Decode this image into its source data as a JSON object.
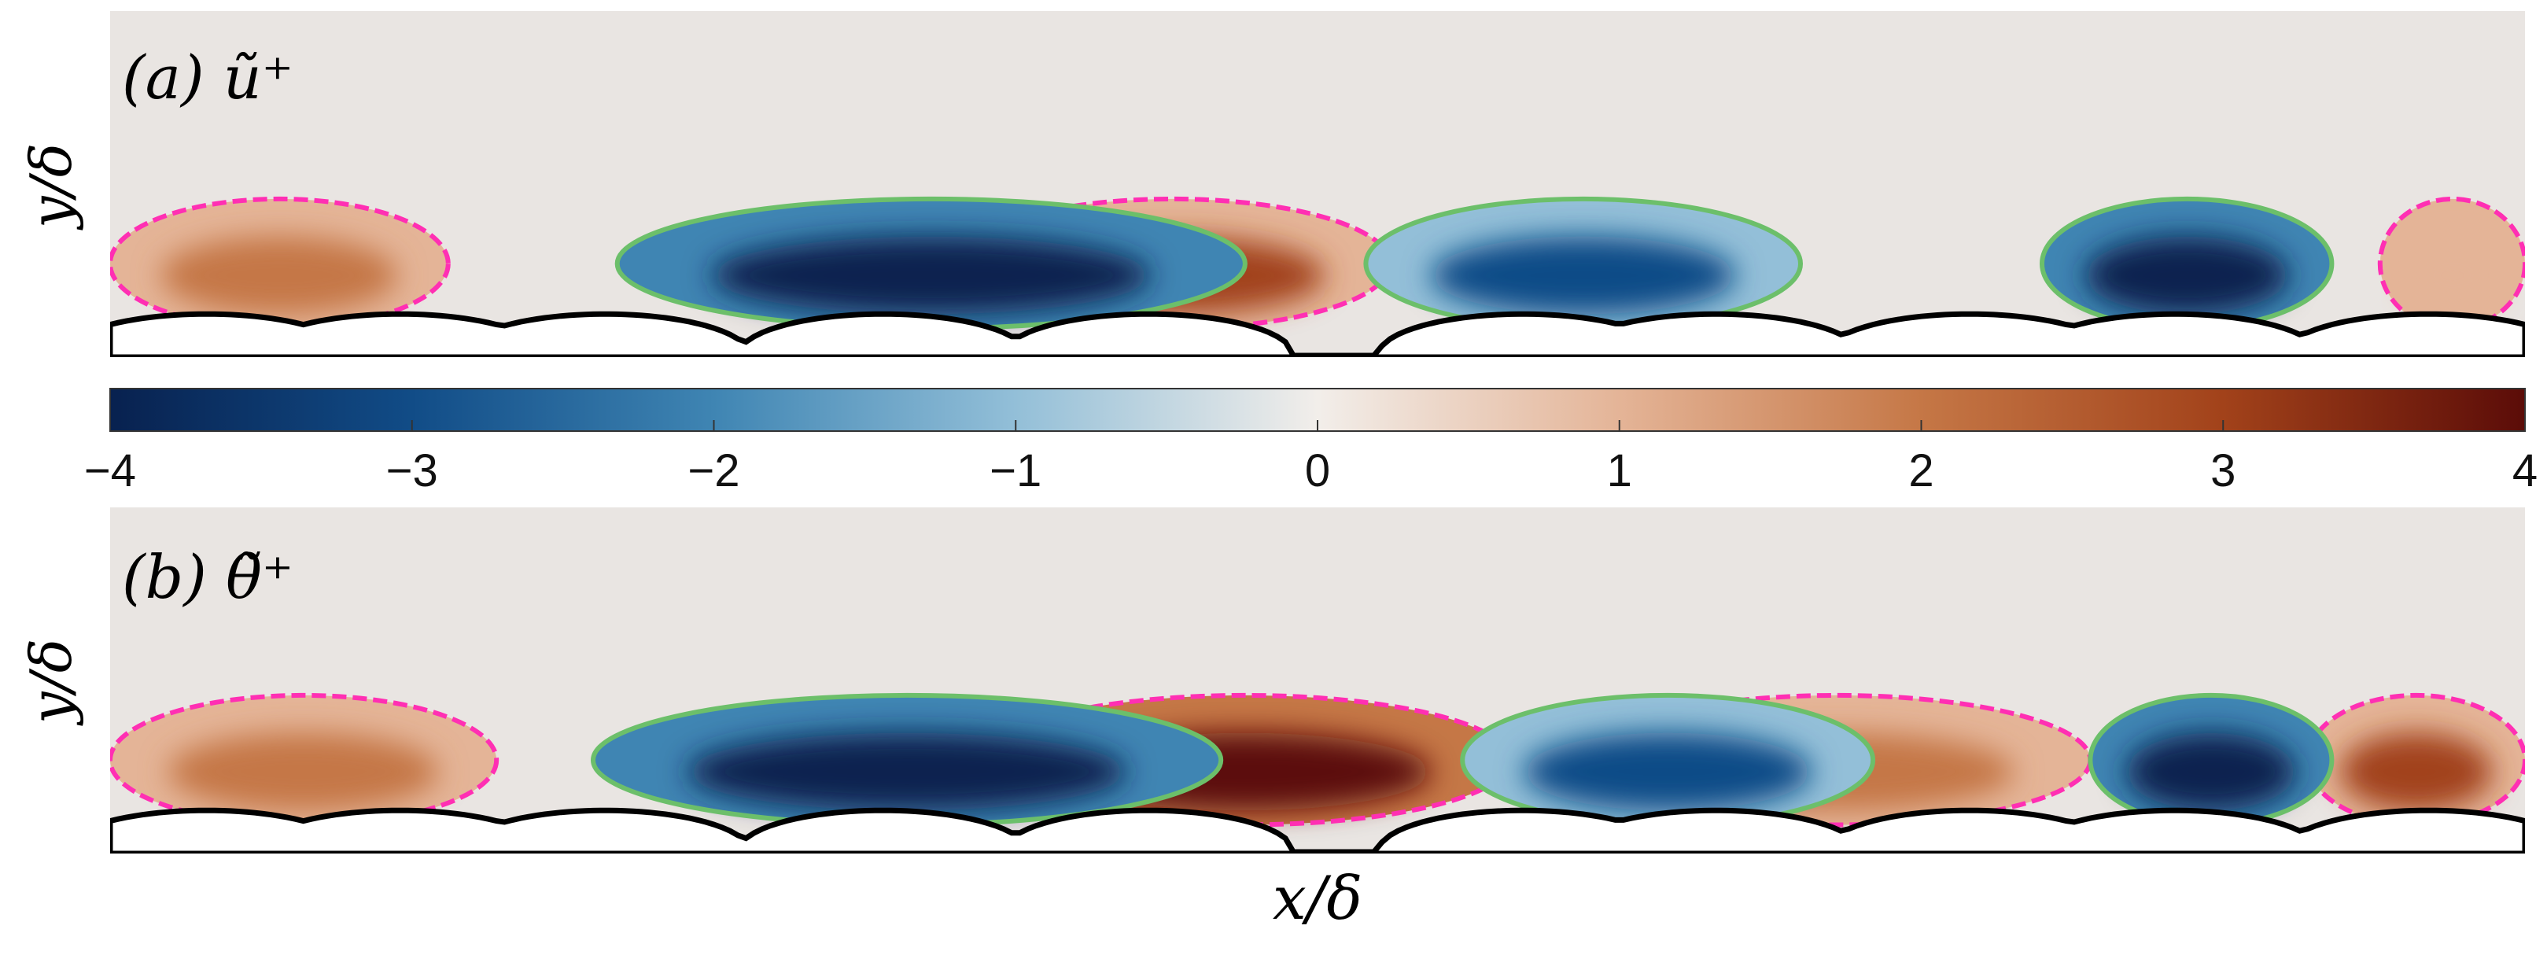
{
  "colors": {
    "background_field": "#e9e5e2",
    "negative_contour": "#6cbf6a",
    "positive_contour": "#ff2fb3",
    "roughness_outline": "#000000",
    "colormap": [
      "#08214f",
      "#114c87",
      "#3f85b3",
      "#93bfd8",
      "#f2eeea",
      "#e4b497",
      "#c57746",
      "#a2421a",
      "#5b0c08"
    ]
  },
  "chart_data": [
    {
      "type": "heatmap",
      "panel_label": "(a) ũ⁺",
      "xlabel": "",
      "ylabel": "y/δ",
      "negative_blobs": [
        {
          "x0": 0.21,
          "x1": 0.47,
          "peak": -3.9
        },
        {
          "x0": 0.52,
          "x1": 0.7,
          "peak": -3.0
        },
        {
          "x0": 0.8,
          "x1": 0.92,
          "peak": -3.9
        }
      ],
      "positive_blobs": [
        {
          "x0": 0.0,
          "x1": 0.14,
          "peak": 1.6
        },
        {
          "x0": 0.35,
          "x1": 0.53,
          "peak": 2.6
        },
        {
          "x0": 0.94,
          "x1": 1.0,
          "peak": 1.4
        }
      ]
    },
    {
      "type": "heatmap",
      "panel_label": "(b) θ̃⁺",
      "xlabel": "x/δ",
      "ylabel": "y/δ",
      "negative_blobs": [
        {
          "x0": 0.2,
          "x1": 0.46,
          "peak": -3.8
        },
        {
          "x0": 0.56,
          "x1": 0.73,
          "peak": -3.2
        },
        {
          "x0": 0.82,
          "x1": 0.92,
          "peak": -3.9
        }
      ],
      "positive_blobs": [
        {
          "x0": 0.0,
          "x1": 0.16,
          "peak": 2.2
        },
        {
          "x0": 0.36,
          "x1": 0.58,
          "peak": 3.8
        },
        {
          "x0": 0.61,
          "x1": 0.82,
          "peak": 2.2
        },
        {
          "x0": 0.91,
          "x1": 1.0,
          "peak": 2.5
        }
      ]
    }
  ],
  "colorbar": {
    "range": [
      -4,
      4
    ],
    "ticks": [
      "−4",
      "−3",
      "−2",
      "−1",
      "0",
      "1",
      "2",
      "3",
      "4"
    ]
  },
  "roughness_peaks": [
    0.04,
    0.12,
    0.205,
    0.32,
    0.43,
    0.585,
    0.665,
    0.77,
    0.855,
    0.96
  ]
}
